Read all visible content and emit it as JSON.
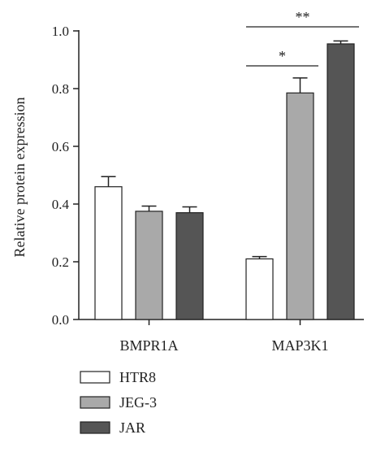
{
  "chart_data": {
    "type": "bar",
    "title": "",
    "ylabel": "Relative protein expression",
    "xlabel": "",
    "ylim": [
      0,
      1.0
    ],
    "yticks": [
      "0.0",
      "0.2",
      "0.4",
      "0.6",
      "0.8",
      "1.0"
    ],
    "categories": [
      "BMPR1A",
      "MAP3K1"
    ],
    "series": [
      {
        "name": "HTR8",
        "values": [
          0.46,
          0.21
        ],
        "errors": [
          0.035,
          0.008
        ],
        "color": "#ffffff"
      },
      {
        "name": "JEG-3",
        "values": [
          0.375,
          0.785
        ],
        "errors": [
          0.018,
          0.052
        ],
        "color": "#a9a9a9"
      },
      {
        "name": "JAR",
        "values": [
          0.37,
          0.955
        ],
        "errors": [
          0.02,
          0.01
        ],
        "color": "#555555"
      }
    ],
    "significance": [
      {
        "label": "*",
        "category": "MAP3K1",
        "from_series": "HTR8",
        "to_series": "JEG-3"
      },
      {
        "label": "**",
        "category": "MAP3K1",
        "from_series": "HTR8",
        "to_series": "JAR"
      }
    ],
    "legend_position": "bottom-left",
    "grid": false
  }
}
